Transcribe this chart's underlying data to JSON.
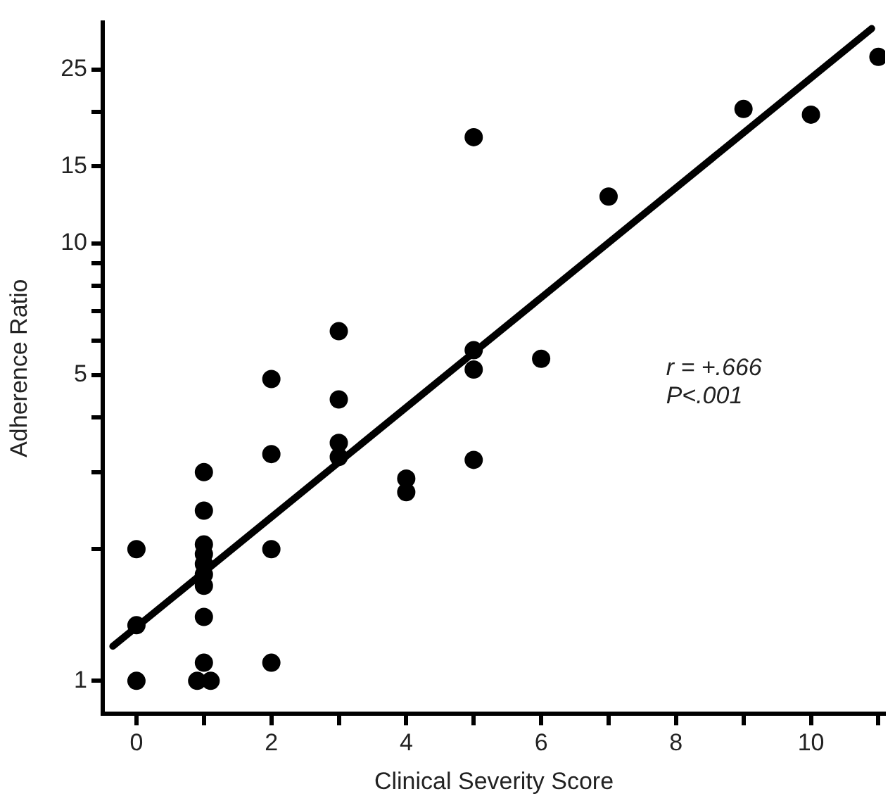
{
  "chart_data": {
    "type": "scatter",
    "xlabel": "Clinical Severity Score",
    "ylabel": "Adherence Ratio",
    "log": "y",
    "marker": "circle",
    "grid": false,
    "legend": false,
    "xlim": [
      -0.5,
      11.1
    ],
    "ylim": [
      0.84,
      32
    ],
    "xticks": [
      0,
      {
        "value": 1,
        "label": null
      },
      2,
      {
        "value": 3,
        "label": null
      },
      4,
      {
        "value": 5,
        "label": null
      },
      6,
      {
        "value": 7,
        "label": null
      },
      8,
      {
        "value": 9,
        "label": null
      },
      10,
      {
        "value": 11,
        "label": null
      }
    ],
    "yticks": [
      1,
      {
        "value": 2,
        "label": null
      },
      {
        "value": 3,
        "label": null
      },
      {
        "value": 4,
        "label": null
      },
      5,
      {
        "value": 6,
        "label": null
      },
      {
        "value": 7,
        "label": null
      },
      {
        "value": 8,
        "label": null
      },
      {
        "value": 9,
        "label": null
      },
      10,
      15,
      {
        "value": 20,
        "label": null
      },
      25
    ],
    "annotations": [
      "r = +.666",
      "P<.001"
    ],
    "series": [
      {
        "color": "#000000",
        "x": [
          0,
          0,
          0,
          0.9,
          1.1,
          1,
          1,
          1,
          1,
          1,
          1,
          1,
          1,
          1,
          2,
          2,
          2,
          2,
          3,
          3,
          3,
          3,
          4,
          4,
          5,
          5,
          5,
          5,
          6,
          7,
          9,
          10,
          11
        ],
        "values": [
          1,
          1.34,
          2,
          1,
          1,
          1.1,
          1.4,
          1.65,
          1.75,
          1.85,
          1.95,
          2.05,
          2.45,
          3,
          1.1,
          2,
          3.3,
          4.9,
          3.25,
          3.5,
          4.4,
          6.3,
          2.7,
          2.9,
          3.2,
          5.15,
          5.7,
          17.5,
          5.45,
          12.8,
          20.3,
          19.7,
          26.7
        ]
      },
      {
        "type": "line",
        "color": "#000000",
        "marker": "none",
        "x": [
          -0.35,
          10.9
        ],
        "values": [
          1.2,
          31
        ]
      }
    ]
  }
}
